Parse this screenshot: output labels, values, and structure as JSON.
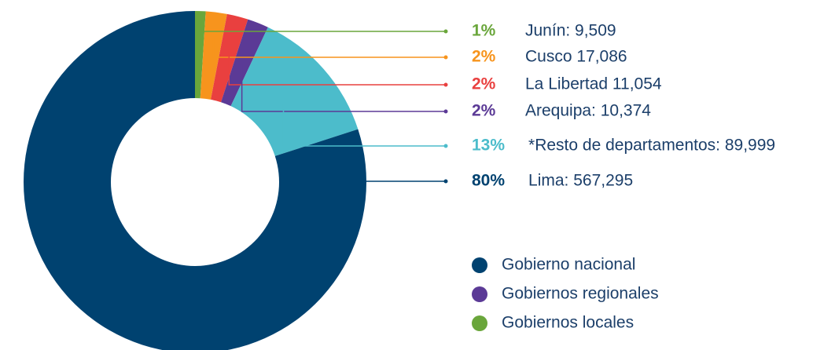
{
  "chart_data": {
    "type": "pie",
    "categories": [
      "Junín: 9,509",
      "Cusco 17,086",
      "La Libertad 11,054",
      "Arequipa: 10,374",
      "*Resto de departamentos: 89,999",
      "Lima: 567,295"
    ],
    "values": [
      1,
      2,
      2,
      2,
      13,
      80
    ],
    "value_labels": [
      "1%",
      "2%",
      "2%",
      "2%",
      "13%",
      "80%"
    ],
    "colors": [
      "#6aa63b",
      "#f7941d",
      "#e9403f",
      "#5b3a96",
      "#4cbccb",
      "#004270"
    ],
    "legend": [
      {
        "name": "Gobierno nacional",
        "color": "#004270"
      },
      {
        "name": "Gobiernos regionales",
        "color": "#5b3a96"
      },
      {
        "name": "Gobiernos locales",
        "color": "#6aa63b"
      }
    ]
  }
}
